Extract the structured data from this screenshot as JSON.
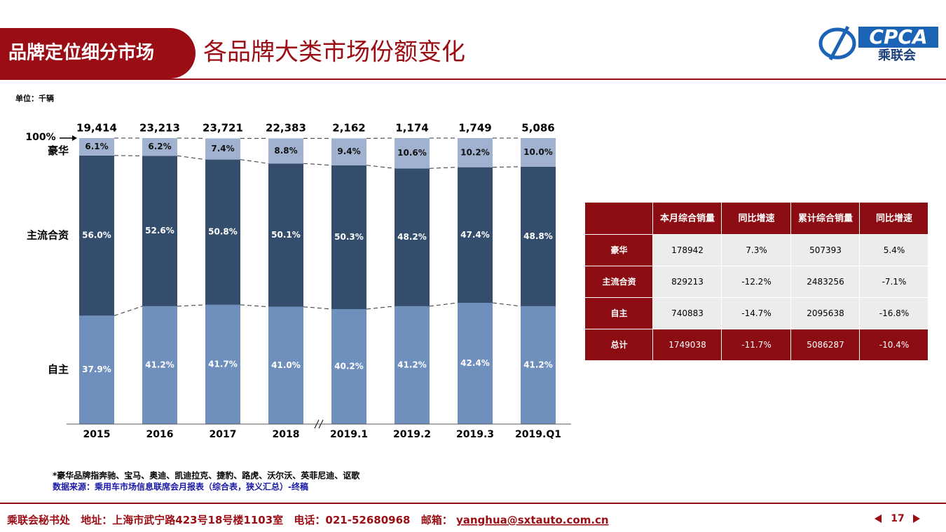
{
  "header": {
    "tag": "品牌定位细分市场",
    "title": "各品牌大类市场份额变化",
    "logo": "CPCA",
    "logo_sub": "乘联会"
  },
  "unit": "单位：千辆",
  "chart_data": {
    "type": "stacked-bar",
    "categories": [
      "2015",
      "2016",
      "2017",
      "2018",
      "2019.1",
      "2019.2",
      "2019.3",
      "2019.Q1"
    ],
    "series": [
      {
        "name": "自主",
        "color": "#6f8fbd",
        "label_color": "#ffffff",
        "values": [
          37.9,
          41.2,
          41.7,
          41.0,
          40.2,
          41.2,
          42.4,
          41.2
        ],
        "value_labels": [
          "37.9%",
          "41.2%",
          "41.7%",
          "41.0%",
          "40.2%",
          "41.2%",
          "42.4%",
          "41.2%"
        ]
      },
      {
        "name": "主流合资",
        "color": "#344d6d",
        "label_color": "#ffffff",
        "values": [
          56.0,
          52.6,
          50.8,
          50.1,
          50.3,
          48.2,
          47.4,
          48.8
        ],
        "value_labels": [
          "56.0%",
          "52.6%",
          "50.8%",
          "50.1%",
          "50.3%",
          "48.2%",
          "47.4%",
          "48.8%"
        ]
      },
      {
        "name": "豪华",
        "color": "#a0b2d0",
        "label_color": "#111111",
        "values": [
          6.1,
          6.2,
          7.4,
          8.8,
          9.4,
          10.6,
          10.2,
          10.0
        ],
        "value_labels": [
          "6.1%",
          "6.2%",
          "7.4%",
          "8.8%",
          "9.4%",
          "10.6%",
          "10.2%",
          "10.0%"
        ]
      }
    ],
    "totals": {
      "values": [
        19414,
        23213,
        23721,
        22383,
        2162,
        1174,
        1749,
        5086
      ],
      "value_labels": [
        "19,414",
        "23,213",
        "23,721",
        "22,383",
        "2,162",
        "1,174",
        "1,749",
        "5,086"
      ]
    },
    "top_marker": {
      "value": 100,
      "label": "100%"
    },
    "ylim": [
      0,
      100
    ]
  },
  "table": {
    "header": [
      "本月综合销量",
      "同比增速",
      "累计综合销量",
      "同比增速"
    ],
    "rows": [
      [
        "豪华",
        "178942",
        "7.3%",
        "507393",
        "5.4%"
      ],
      [
        "主流合资",
        "829213",
        "-12.2%",
        "2483256",
        "-7.1%"
      ],
      [
        "自主",
        "740883",
        "-14.7%",
        "2095638",
        "-16.8%"
      ],
      [
        "总计",
        "1749038",
        "-11.7%",
        "5086287",
        "-10.4%"
      ]
    ]
  },
  "notes": [
    "*豪华品牌指奔驰、宝马、奥迪、凯迪拉克、捷豹、路虎、沃尔沃、英菲尼迪、讴歌",
    "数据来源：乘用车市场信息联席会月报表（综合表，狭义汇总）-终稿"
  ],
  "footer": {
    "org": "乘联会秘书处",
    "address": "地址：上海市武宁路423号18号楼1103室",
    "phone": "电话：021-52680968",
    "email_label": "邮箱：",
    "email": "yanghua@sxtauto.com.cn"
  },
  "page_number": 17
}
